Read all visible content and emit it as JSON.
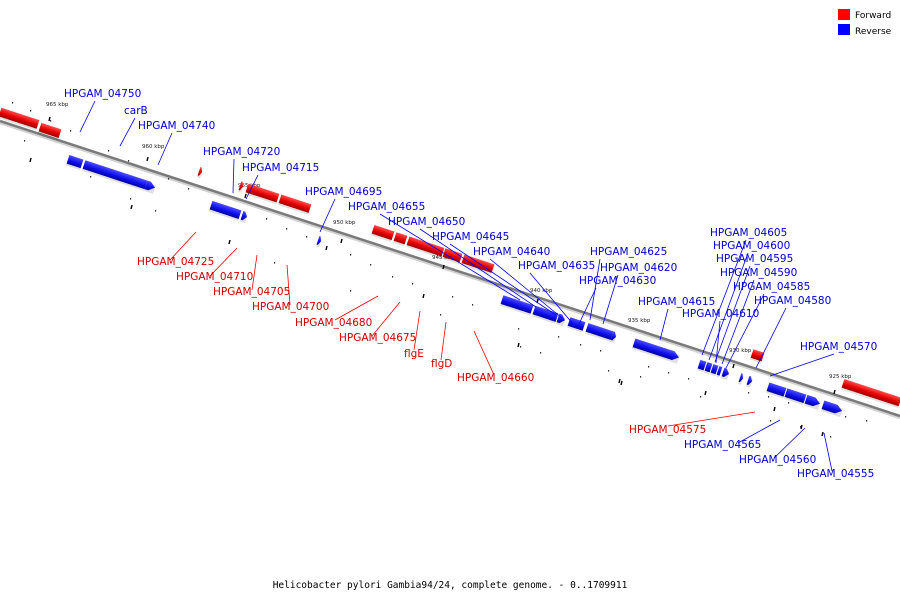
{
  "caption": "Helicobacter pylori Gambia94/24, complete genome. - 0..1709911",
  "legend": [
    {
      "label": "Forward",
      "color": "#ff0000"
    },
    {
      "label": "Reverse",
      "color": "#0000ff"
    }
  ],
  "colors": {
    "forward": "#ff0000",
    "reverse": "#0000ff",
    "forward_label": "#cc0000",
    "reverse_label": "#0000cc",
    "axis": "#808080"
  },
  "kbp_marks": [
    "965 kbp",
    "960 kbp",
    "955 kbp",
    "950 kbp",
    "945 kbp",
    "940 kbp",
    "935 kbp",
    "930 kbp",
    "925 kbp"
  ],
  "labels": [
    "HPGAM_04750",
    "carB",
    "HPGAM_04740",
    "HPGAM_04720",
    "HPGAM_04715",
    "HPGAM_04695",
    "HPGAM_04655",
    "HPGAM_04650",
    "HPGAM_04645",
    "HPGAM_04640",
    "HPGAM_04635",
    "HPGAM_04625",
    "HPGAM_04620",
    "HPGAM_04630",
    "HPGAM_04615",
    "HPGAM_04610",
    "HPGAM_04605",
    "HPGAM_04600",
    "HPGAM_04595",
    "HPGAM_04590",
    "HPGAM_04585",
    "HPGAM_04580",
    "HPGAM_04570",
    "HPGAM_04725",
    "HPGAM_04710",
    "HPGAM_04705",
    "HPGAM_04700",
    "HPGAM_04680",
    "HPGAM_04675",
    "flgE",
    "flgD",
    "HPGAM_04660",
    "HPGAM_04575",
    "HPGAM_04565",
    "HPGAM_04560",
    "HPGAM_04555"
  ]
}
